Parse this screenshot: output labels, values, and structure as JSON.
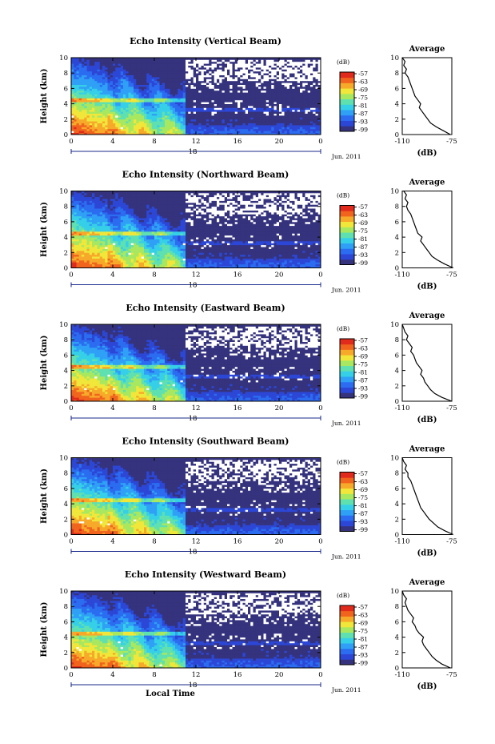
{
  "chart_data": [
    {
      "type": "heatmap",
      "title": "Echo Intensity (Vertical Beam)",
      "ylabel": "Height (km)",
      "xticks": [
        "0",
        "4",
        "8",
        "12",
        "16",
        "20",
        "0"
      ],
      "yticks": [
        "0",
        "2",
        "4",
        "6",
        "8",
        "10"
      ],
      "date_tick": "18",
      "date_label": "Jun. 2011",
      "xlim": [
        0,
        24
      ],
      "ylim": [
        0,
        10
      ],
      "colorbar": {
        "title": "(dB)",
        "ticks": [
          "-57",
          "-63",
          "-69",
          "-75",
          "-81",
          "-87",
          "-93",
          "-99"
        ]
      },
      "average": {
        "title": "Average",
        "xlabel": "(dB)",
        "xticks": [
          "-110",
          "-75"
        ],
        "yticks": [
          "0",
          "2",
          "4",
          "6",
          "8",
          "10"
        ],
        "profile": [
          [
            0,
            -76
          ],
          [
            0.5,
            -81
          ],
          [
            1,
            -86
          ],
          [
            1.5,
            -90
          ],
          [
            2,
            -92
          ],
          [
            2.5,
            -94
          ],
          [
            3,
            -96
          ],
          [
            3.5,
            -98
          ],
          [
            4,
            -97
          ],
          [
            4.5,
            -99
          ],
          [
            5,
            -101
          ],
          [
            5.5,
            -102
          ],
          [
            6,
            -103
          ],
          [
            6.5,
            -104
          ],
          [
            7,
            -105
          ],
          [
            7.5,
            -106
          ],
          [
            8,
            -108
          ],
          [
            8.5,
            -107
          ],
          [
            9,
            -109
          ],
          [
            9.5,
            -108
          ],
          [
            10,
            -110
          ]
        ]
      }
    },
    {
      "type": "heatmap",
      "title": "Echo Intensity (Northward Beam)",
      "ylabel": "Height (km)",
      "xticks": [
        "0",
        "4",
        "8",
        "12",
        "16",
        "20",
        "0"
      ],
      "yticks": [
        "0",
        "2",
        "4",
        "6",
        "8",
        "10"
      ],
      "date_tick": "18",
      "date_label": "Jun. 2011",
      "xlim": [
        0,
        24
      ],
      "ylim": [
        0,
        10
      ],
      "colorbar": {
        "title": "(dB)",
        "ticks": [
          "-57",
          "-63",
          "-69",
          "-75",
          "-81",
          "-87",
          "-93",
          "-99"
        ]
      },
      "average": {
        "title": "Average",
        "xlabel": "(dB)",
        "xticks": [
          "-110",
          "-75"
        ],
        "yticks": [
          "0",
          "2",
          "4",
          "6",
          "8",
          "10"
        ],
        "profile": [
          [
            0,
            -74
          ],
          [
            0.5,
            -80
          ],
          [
            1,
            -85
          ],
          [
            1.5,
            -89
          ],
          [
            2,
            -91
          ],
          [
            2.5,
            -93
          ],
          [
            3,
            -95
          ],
          [
            3.5,
            -97
          ],
          [
            4,
            -96
          ],
          [
            4.5,
            -99
          ],
          [
            5,
            -100
          ],
          [
            5.5,
            -101
          ],
          [
            6,
            -102
          ],
          [
            6.5,
            -103
          ],
          [
            7,
            -104
          ],
          [
            7.5,
            -106
          ],
          [
            8,
            -107
          ],
          [
            8.5,
            -106
          ],
          [
            9,
            -108
          ],
          [
            9.5,
            -107
          ],
          [
            10,
            -109
          ]
        ]
      }
    },
    {
      "type": "heatmap",
      "title": "Echo Intensity (Eastward Beam)",
      "ylabel": "Height (km)",
      "xticks": [
        "0",
        "4",
        "8",
        "12",
        "16",
        "20",
        "0"
      ],
      "yticks": [
        "0",
        "2",
        "4",
        "6",
        "8",
        "10"
      ],
      "date_tick": "18",
      "date_label": "Jun. 2011",
      "xlim": [
        0,
        24
      ],
      "ylim": [
        0,
        10
      ],
      "colorbar": {
        "title": "(dB)",
        "ticks": [
          "-57",
          "-63",
          "-69",
          "-75",
          "-81",
          "-87",
          "-93",
          "-99"
        ]
      },
      "average": {
        "title": "Average",
        "xlabel": "(dB)",
        "xticks": [
          "-110",
          "-75"
        ],
        "yticks": [
          "0",
          "2",
          "4",
          "6",
          "8",
          "10"
        ],
        "profile": [
          [
            0,
            -75
          ],
          [
            0.5,
            -82
          ],
          [
            1,
            -87
          ],
          [
            1.5,
            -90
          ],
          [
            2,
            -92
          ],
          [
            2.5,
            -94
          ],
          [
            3,
            -95
          ],
          [
            3.5,
            -97
          ],
          [
            4,
            -96
          ],
          [
            4.5,
            -98
          ],
          [
            5,
            -100
          ],
          [
            5.5,
            -101
          ],
          [
            6,
            -102
          ],
          [
            6.5,
            -104
          ],
          [
            7,
            -103
          ],
          [
            7.5,
            -105
          ],
          [
            8,
            -107
          ],
          [
            8.5,
            -106
          ],
          [
            9,
            -108
          ],
          [
            9.5,
            -109
          ],
          [
            10,
            -110
          ]
        ]
      }
    },
    {
      "type": "heatmap",
      "title": "Echo Intensity (Southward Beam)",
      "ylabel": "Height (km)",
      "xticks": [
        "0",
        "4",
        "8",
        "12",
        "16",
        "20",
        "0"
      ],
      "yticks": [
        "0",
        "2",
        "4",
        "6",
        "8",
        "10"
      ],
      "date_tick": "18",
      "date_label": "Jun. 2011",
      "xlim": [
        0,
        24
      ],
      "ylim": [
        0,
        10
      ],
      "colorbar": {
        "title": "(dB)",
        "ticks": [
          "-57",
          "-63",
          "-69",
          "-75",
          "-81",
          "-87",
          "-93",
          "-99"
        ]
      },
      "average": {
        "title": "Average",
        "xlabel": "(dB)",
        "xticks": [
          "-110",
          "-75"
        ],
        "yticks": [
          "0",
          "2",
          "4",
          "6",
          "8",
          "10"
        ],
        "profile": [
          [
            0,
            -74
          ],
          [
            0.5,
            -80
          ],
          [
            1,
            -85
          ],
          [
            1.5,
            -88
          ],
          [
            2,
            -91
          ],
          [
            2.5,
            -93
          ],
          [
            3,
            -95
          ],
          [
            3.5,
            -97
          ],
          [
            4,
            -98
          ],
          [
            4.5,
            -99
          ],
          [
            5,
            -100
          ],
          [
            5.5,
            -101
          ],
          [
            6,
            -102
          ],
          [
            6.5,
            -103
          ],
          [
            7,
            -104
          ],
          [
            7.5,
            -106
          ],
          [
            8,
            -106
          ],
          [
            8.5,
            -108
          ],
          [
            9,
            -107
          ],
          [
            9.5,
            -109
          ],
          [
            10,
            -110
          ]
        ]
      }
    },
    {
      "type": "heatmap",
      "title": "Echo Intensity (Westward Beam)",
      "ylabel": "Height (km)",
      "xlabel": "Local Time",
      "xticks": [
        "0",
        "4",
        "8",
        "12",
        "16",
        "20",
        "0"
      ],
      "yticks": [
        "0",
        "2",
        "4",
        "6",
        "8",
        "10"
      ],
      "date_tick": "18",
      "date_label": "Jun. 2011",
      "xlim": [
        0,
        24
      ],
      "ylim": [
        0,
        10
      ],
      "colorbar": {
        "title": "(dB)",
        "ticks": [
          "-57",
          "-63",
          "-69",
          "-75",
          "-81",
          "-87",
          "-93",
          "-99"
        ]
      },
      "average": {
        "title": "Average",
        "xlabel": "(dB)",
        "xticks": [
          "-110",
          "-75"
        ],
        "yticks": [
          "0",
          "2",
          "4",
          "6",
          "8",
          "10"
        ],
        "profile": [
          [
            0,
            -76
          ],
          [
            0.5,
            -82
          ],
          [
            1,
            -86
          ],
          [
            1.5,
            -89
          ],
          [
            2,
            -91
          ],
          [
            2.5,
            -93
          ],
          [
            3,
            -95
          ],
          [
            3.5,
            -96
          ],
          [
            4,
            -95
          ],
          [
            4.5,
            -98
          ],
          [
            5,
            -100
          ],
          [
            5.5,
            -101
          ],
          [
            6,
            -103
          ],
          [
            6.5,
            -102
          ],
          [
            7,
            -104
          ],
          [
            7.5,
            -106
          ],
          [
            8,
            -107
          ],
          [
            8.5,
            -108
          ],
          [
            9,
            -107
          ],
          [
            9.5,
            -109
          ],
          [
            10,
            -110
          ]
        ]
      }
    }
  ],
  "colors": {
    "colormap": [
      "#35337d",
      "#2c47d6",
      "#2b6cf0",
      "#2fa0f5",
      "#36cfe8",
      "#5fe0b0",
      "#a8e860",
      "#f1e73a",
      "#f7a92a",
      "#f0641e",
      "#e02a1c"
    ],
    "background_level": "#35337d"
  }
}
